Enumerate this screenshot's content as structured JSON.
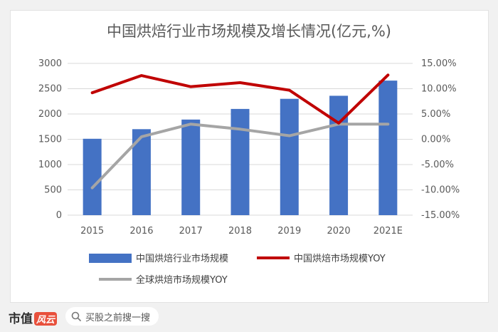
{
  "chart_data": {
    "type": "bar+line",
    "title": "中国烘焙行业市场规模及增长情况(亿元,%)",
    "categories": [
      "2015",
      "2016",
      "2017",
      "2018",
      "2019",
      "2020",
      "2021E"
    ],
    "y_left": {
      "ylim": [
        0,
        3000
      ],
      "ticks": [
        "0",
        "500",
        "1000",
        "1500",
        "2000",
        "2500",
        "3000"
      ]
    },
    "y_right": {
      "ylim": [
        -15,
        15
      ],
      "ticks": [
        "-15.00%",
        "-10.00%",
        "-5.00%",
        "0.00%",
        "5.00%",
        "10.00%",
        "15.00%"
      ]
    },
    "grid": true,
    "legend_position": "bottom",
    "series": [
      {
        "name": "中国烘焙行业市场规模",
        "kind": "bar",
        "axis": "left",
        "color": "#4472c4",
        "values": [
          1510,
          1700,
          1890,
          2100,
          2300,
          2360,
          2660
        ]
      },
      {
        "name": "中国烘焙市场规模YOY",
        "kind": "line",
        "axis": "right",
        "color": "#c00000",
        "values": [
          9.2,
          12.6,
          10.4,
          11.2,
          9.7,
          3.2,
          12.7
        ]
      },
      {
        "name": "全球烘焙市场规模YOY",
        "kind": "line",
        "axis": "right",
        "color": "#a5a5a5",
        "values": [
          -9.6,
          0.5,
          3.0,
          2.0,
          0.7,
          3.0,
          3.0
        ]
      }
    ]
  },
  "footer": {
    "brand": "市值",
    "brand_badge": "风云",
    "search_text": "买股之前搜一搜"
  }
}
